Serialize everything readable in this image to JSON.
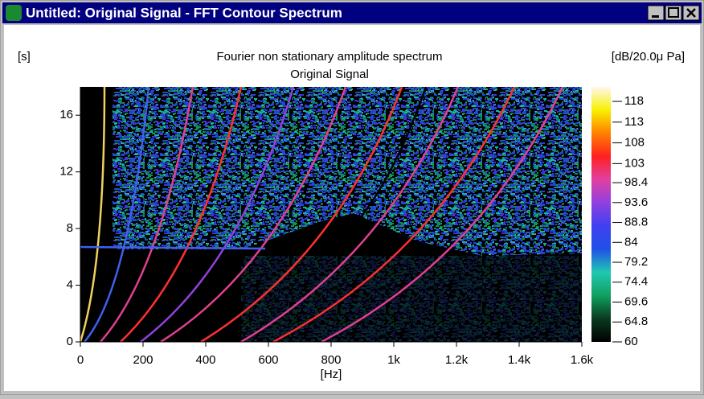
{
  "window": {
    "title": "Untitled: Original Signal - FFT Contour Spectrum"
  },
  "chart_data": {
    "type": "spectrogram",
    "title": "Fourier non stationary amplitude spectrum",
    "subtitle": "Original Signal",
    "y_label": "[s]",
    "x_label": "[Hz]",
    "colorbar_label": "[dB/20.0μ Pa]",
    "xlim": [
      0,
      1600
    ],
    "ylim": [
      0,
      18
    ],
    "xticks": [
      0,
      200,
      400,
      600,
      800,
      {
        "value": 1000,
        "label": "1k"
      },
      {
        "value": 1200,
        "label": "1.2k"
      },
      {
        "value": 1400,
        "label": "1.4k"
      },
      {
        "value": 1600,
        "label": "1.6k"
      }
    ],
    "yticks": [
      0,
      4,
      8,
      12,
      16
    ],
    "clim": [
      60,
      121.5
    ],
    "cticks": [
      60,
      64.8,
      69.6,
      74.4,
      79.2,
      84,
      88.8,
      93.6,
      98.4,
      103,
      108,
      113,
      118
    ],
    "colormap": [
      "#000000",
      "#0a3a20",
      "#10a060",
      "#20c8b0",
      "#2050e8",
      "#4040f0",
      "#9040e0",
      "#e040a0",
      "#ff2020",
      "#ff8000",
      "#f8f000",
      "#fff8f0"
    ]
  }
}
